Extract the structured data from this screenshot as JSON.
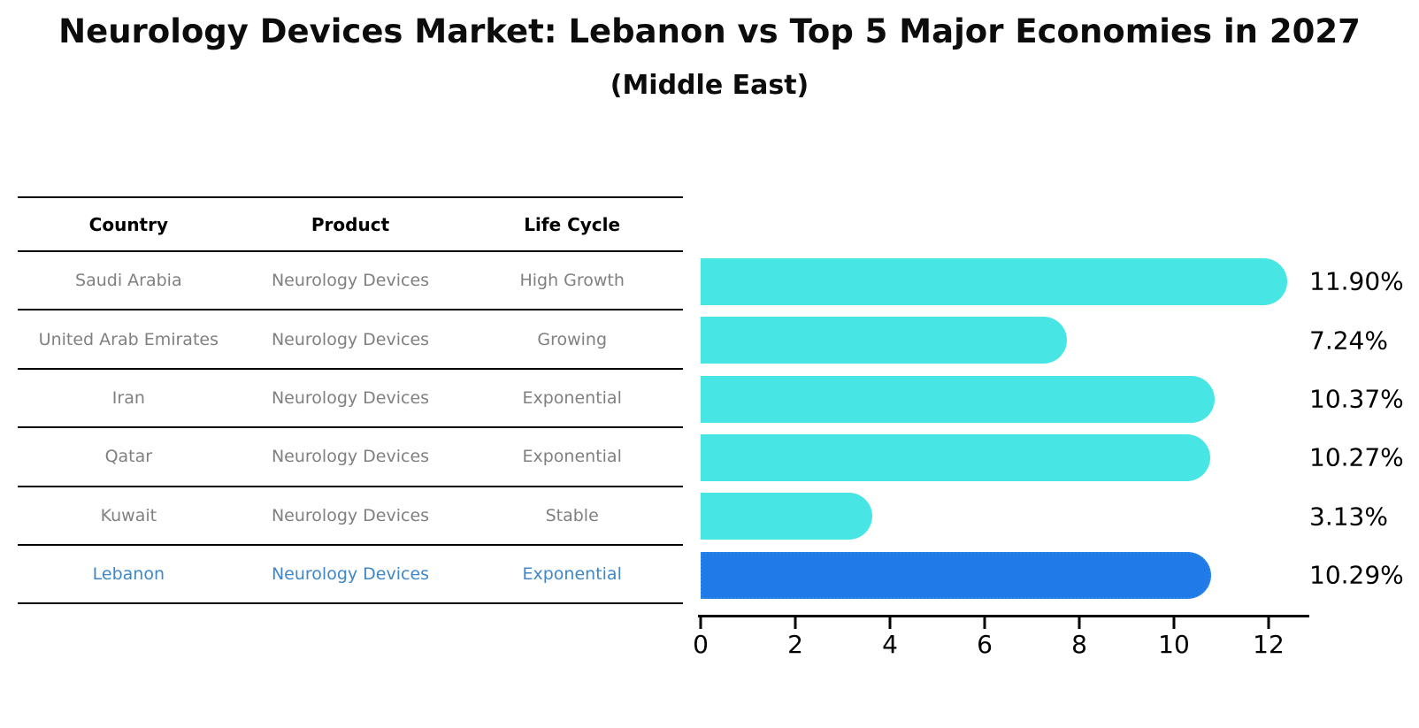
{
  "title": "Neurology Devices Market: Lebanon vs Top 5 Major Economies in 2027",
  "subtitle": "(Middle East)",
  "table": {
    "headers": [
      "Country",
      "Product",
      "Life Cycle"
    ],
    "rows": [
      {
        "country": "Saudi Arabia",
        "product": "Neurology Devices",
        "life_cycle": "High Growth",
        "highlight": false
      },
      {
        "country": "United Arab Emirates",
        "product": "Neurology Devices",
        "life_cycle": "Growing",
        "highlight": false
      },
      {
        "country": "Iran",
        "product": "Neurology Devices",
        "life_cycle": "Exponential",
        "highlight": false
      },
      {
        "country": "Qatar",
        "product": "Neurology Devices",
        "life_cycle": "Exponential",
        "highlight": false
      },
      {
        "country": "Kuwait",
        "product": "Neurology Devices",
        "life_cycle": "Stable",
        "highlight": false
      },
      {
        "country": "Lebanon",
        "product": "Neurology Devices",
        "life_cycle": "Exponential",
        "highlight": true
      }
    ]
  },
  "chart_data": {
    "type": "bar",
    "orientation": "horizontal",
    "categories": [
      "Saudi Arabia",
      "United Arab Emirates",
      "Iran",
      "Qatar",
      "Kuwait",
      "Lebanon"
    ],
    "values": [
      11.9,
      7.24,
      10.37,
      10.27,
      3.13,
      10.29
    ],
    "value_labels": [
      "11.90%",
      "7.24%",
      "10.37%",
      "10.27%",
      "3.13%",
      "10.29%"
    ],
    "xticks": [
      0,
      2,
      4,
      6,
      8,
      10,
      12
    ],
    "xlim": [
      0,
      12.8
    ],
    "grid": false,
    "legend": "none",
    "bar_color": "#48E5E5",
    "highlight_color": "#207BE8",
    "highlight_border_color": "#2b86ea",
    "highlight_index": 5,
    "highlight_text_color": "#3f87c9",
    "table_text_color": "#808080"
  }
}
